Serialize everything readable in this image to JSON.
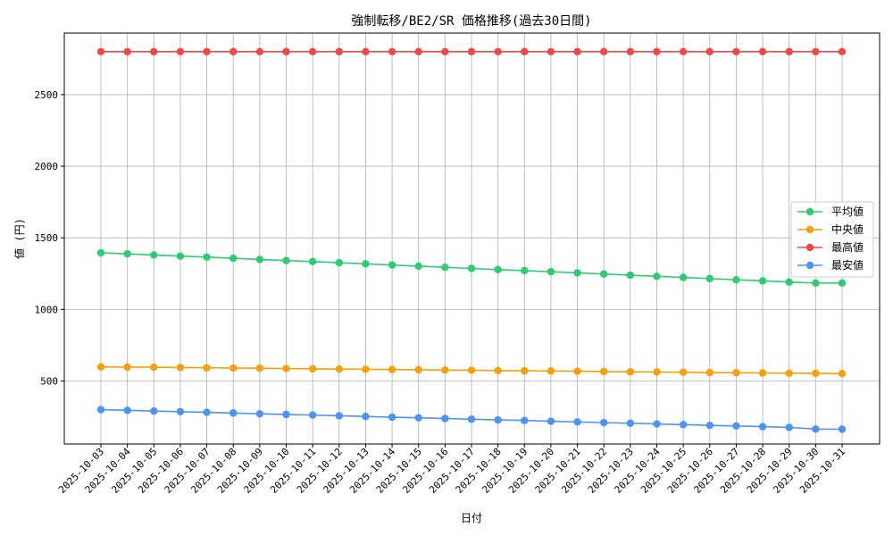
{
  "chart_data": {
    "type": "line",
    "title": "強制転移/BE2/SR 価格推移(過去30日間)",
    "xlabel": "日付",
    "ylabel": "値 (円)",
    "categories": [
      "2025-10-03",
      "2025-10-04",
      "2025-10-05",
      "2025-10-06",
      "2025-10-07",
      "2025-10-08",
      "2025-10-09",
      "2025-10-10",
      "2025-10-11",
      "2025-10-12",
      "2025-10-13",
      "2025-10-14",
      "2025-10-15",
      "2025-10-16",
      "2025-10-17",
      "2025-10-18",
      "2025-10-19",
      "2025-10-20",
      "2025-10-21",
      "2025-10-22",
      "2025-10-23",
      "2025-10-24",
      "2025-10-25",
      "2025-10-26",
      "2025-10-27",
      "2025-10-28",
      "2025-10-29",
      "2025-10-30",
      "2025-10-31"
    ],
    "yticks": [
      500,
      1000,
      1500,
      2000,
      2500
    ],
    "ylim": [
      60,
      2930
    ],
    "grid": true,
    "legend_position": "center-right",
    "series": [
      {
        "name": "平均値",
        "color": "#2ecc71",
        "values": [
          1395,
          1388,
          1380,
          1372,
          1365,
          1357,
          1349,
          1341,
          1334,
          1326,
          1318,
          1310,
          1302,
          1294,
          1286,
          1278,
          1271,
          1263,
          1255,
          1247,
          1239,
          1231,
          1223,
          1215,
          1207,
          1199,
          1191,
          1184,
          1184
        ]
      },
      {
        "name": "中央値",
        "color": "#f5a00c",
        "values": [
          598,
          597,
          596,
          594,
          592,
          590,
          589,
          587,
          585,
          583,
          582,
          580,
          578,
          576,
          575,
          573,
          571,
          570,
          568,
          566,
          564,
          563,
          561,
          559,
          558,
          556,
          554,
          553,
          552
        ]
      },
      {
        "name": "最高値",
        "color": "#f04848",
        "values": [
          2800,
          2800,
          2800,
          2800,
          2800,
          2800,
          2800,
          2800,
          2800,
          2800,
          2800,
          2800,
          2800,
          2800,
          2800,
          2800,
          2800,
          2800,
          2800,
          2800,
          2800,
          2800,
          2800,
          2800,
          2800,
          2800,
          2800,
          2800,
          2800
        ]
      },
      {
        "name": "最安値",
        "color": "#4d94f0",
        "values": [
          300,
          295,
          290,
          286,
          281,
          276,
          271,
          266,
          262,
          257,
          252,
          247,
          243,
          238,
          233,
          228,
          224,
          219,
          214,
          209,
          205,
          200,
          195,
          190,
          186,
          181,
          176,
          164,
          163
        ]
      }
    ]
  }
}
